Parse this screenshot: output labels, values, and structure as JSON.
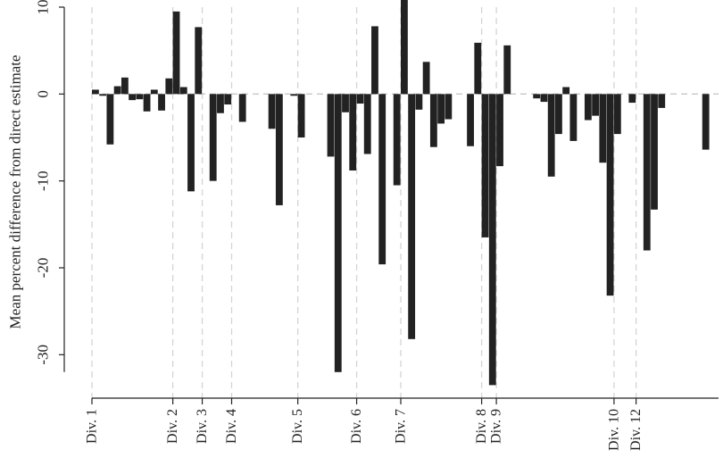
{
  "chart_data": {
    "type": "bar",
    "ylabel": "Mean percent difference from direct estimate",
    "ylim": [
      -35,
      10
    ],
    "yticks": [
      10,
      0,
      -10,
      -20,
      -30
    ],
    "ytick_labels": [
      "10",
      "0",
      "-10",
      "-20",
      "-30"
    ],
    "grid": false,
    "zero_line": true,
    "bar_color": "#222222",
    "division_line_color": "#d4d4d4",
    "divisions": [
      {
        "label": "Div. 1",
        "x": 1
      },
      {
        "label": "Div. 2",
        "x": 12
      },
      {
        "label": "Div. 3",
        "x": 16
      },
      {
        "label": "Div. 4",
        "x": 20
      },
      {
        "label": "Div. 5",
        "x": 29
      },
      {
        "label": "Div. 6",
        "x": 37
      },
      {
        "label": "Div. 7",
        "x": 43
      },
      {
        "label": "Div. 8",
        "x": 54
      },
      {
        "label": "Div. 9",
        "x": 56
      },
      {
        "label": "Div. 10",
        "x": 72
      },
      {
        "label": "Div. 12",
        "x": 75
      }
    ],
    "x": [
      1,
      2,
      3,
      4,
      5,
      6,
      7,
      8,
      9,
      10,
      11,
      12,
      13,
      14,
      15,
      16,
      17,
      18,
      19,
      20,
      21,
      22,
      23,
      24,
      25,
      26,
      27,
      28,
      29,
      30,
      31,
      32,
      33,
      34,
      35,
      36,
      37,
      38,
      39,
      40,
      41,
      42,
      43,
      44,
      45,
      46,
      47,
      48,
      49,
      50,
      51,
      52,
      53,
      54,
      55,
      56,
      57,
      58,
      59,
      60,
      61,
      62,
      63,
      64,
      65,
      66,
      67,
      68,
      69,
      70,
      71,
      72,
      73,
      74,
      75,
      76,
      77,
      78,
      79,
      80,
      81,
      82,
      83,
      84
    ],
    "values": [
      0.5,
      -0.2,
      -5.8,
      0.9,
      1.9,
      -0.7,
      -0.6,
      -2.0,
      0.5,
      -1.9,
      1.8,
      9.5,
      0.8,
      -11.2,
      7.7,
      0,
      -10,
      -2.2,
      -1.2,
      0,
      -3.2,
      0,
      0,
      0,
      -4,
      -12.8,
      0,
      -0.2,
      -5,
      0,
      0,
      0,
      -7.2,
      -32,
      -2.1,
      -8.8,
      -1.1,
      -6.9,
      7.8,
      -19.6,
      0,
      -10.5,
      11.3,
      -28.2,
      -1.8,
      3.7,
      -6.1,
      -3.4,
      -2.9,
      0,
      0,
      -6,
      5.9,
      -16.5,
      -33.5,
      -8.3,
      5.6,
      0,
      0,
      0,
      -0.5,
      -0.9,
      -9.5,
      -4.6,
      0.8,
      -5.4,
      0,
      -3,
      -2.5,
      -7.9,
      -23.2,
      -4.6,
      0,
      -1,
      0,
      -18,
      -13.3,
      -1.6,
      0,
      0,
      0,
      0,
      0,
      -6.4
    ]
  }
}
